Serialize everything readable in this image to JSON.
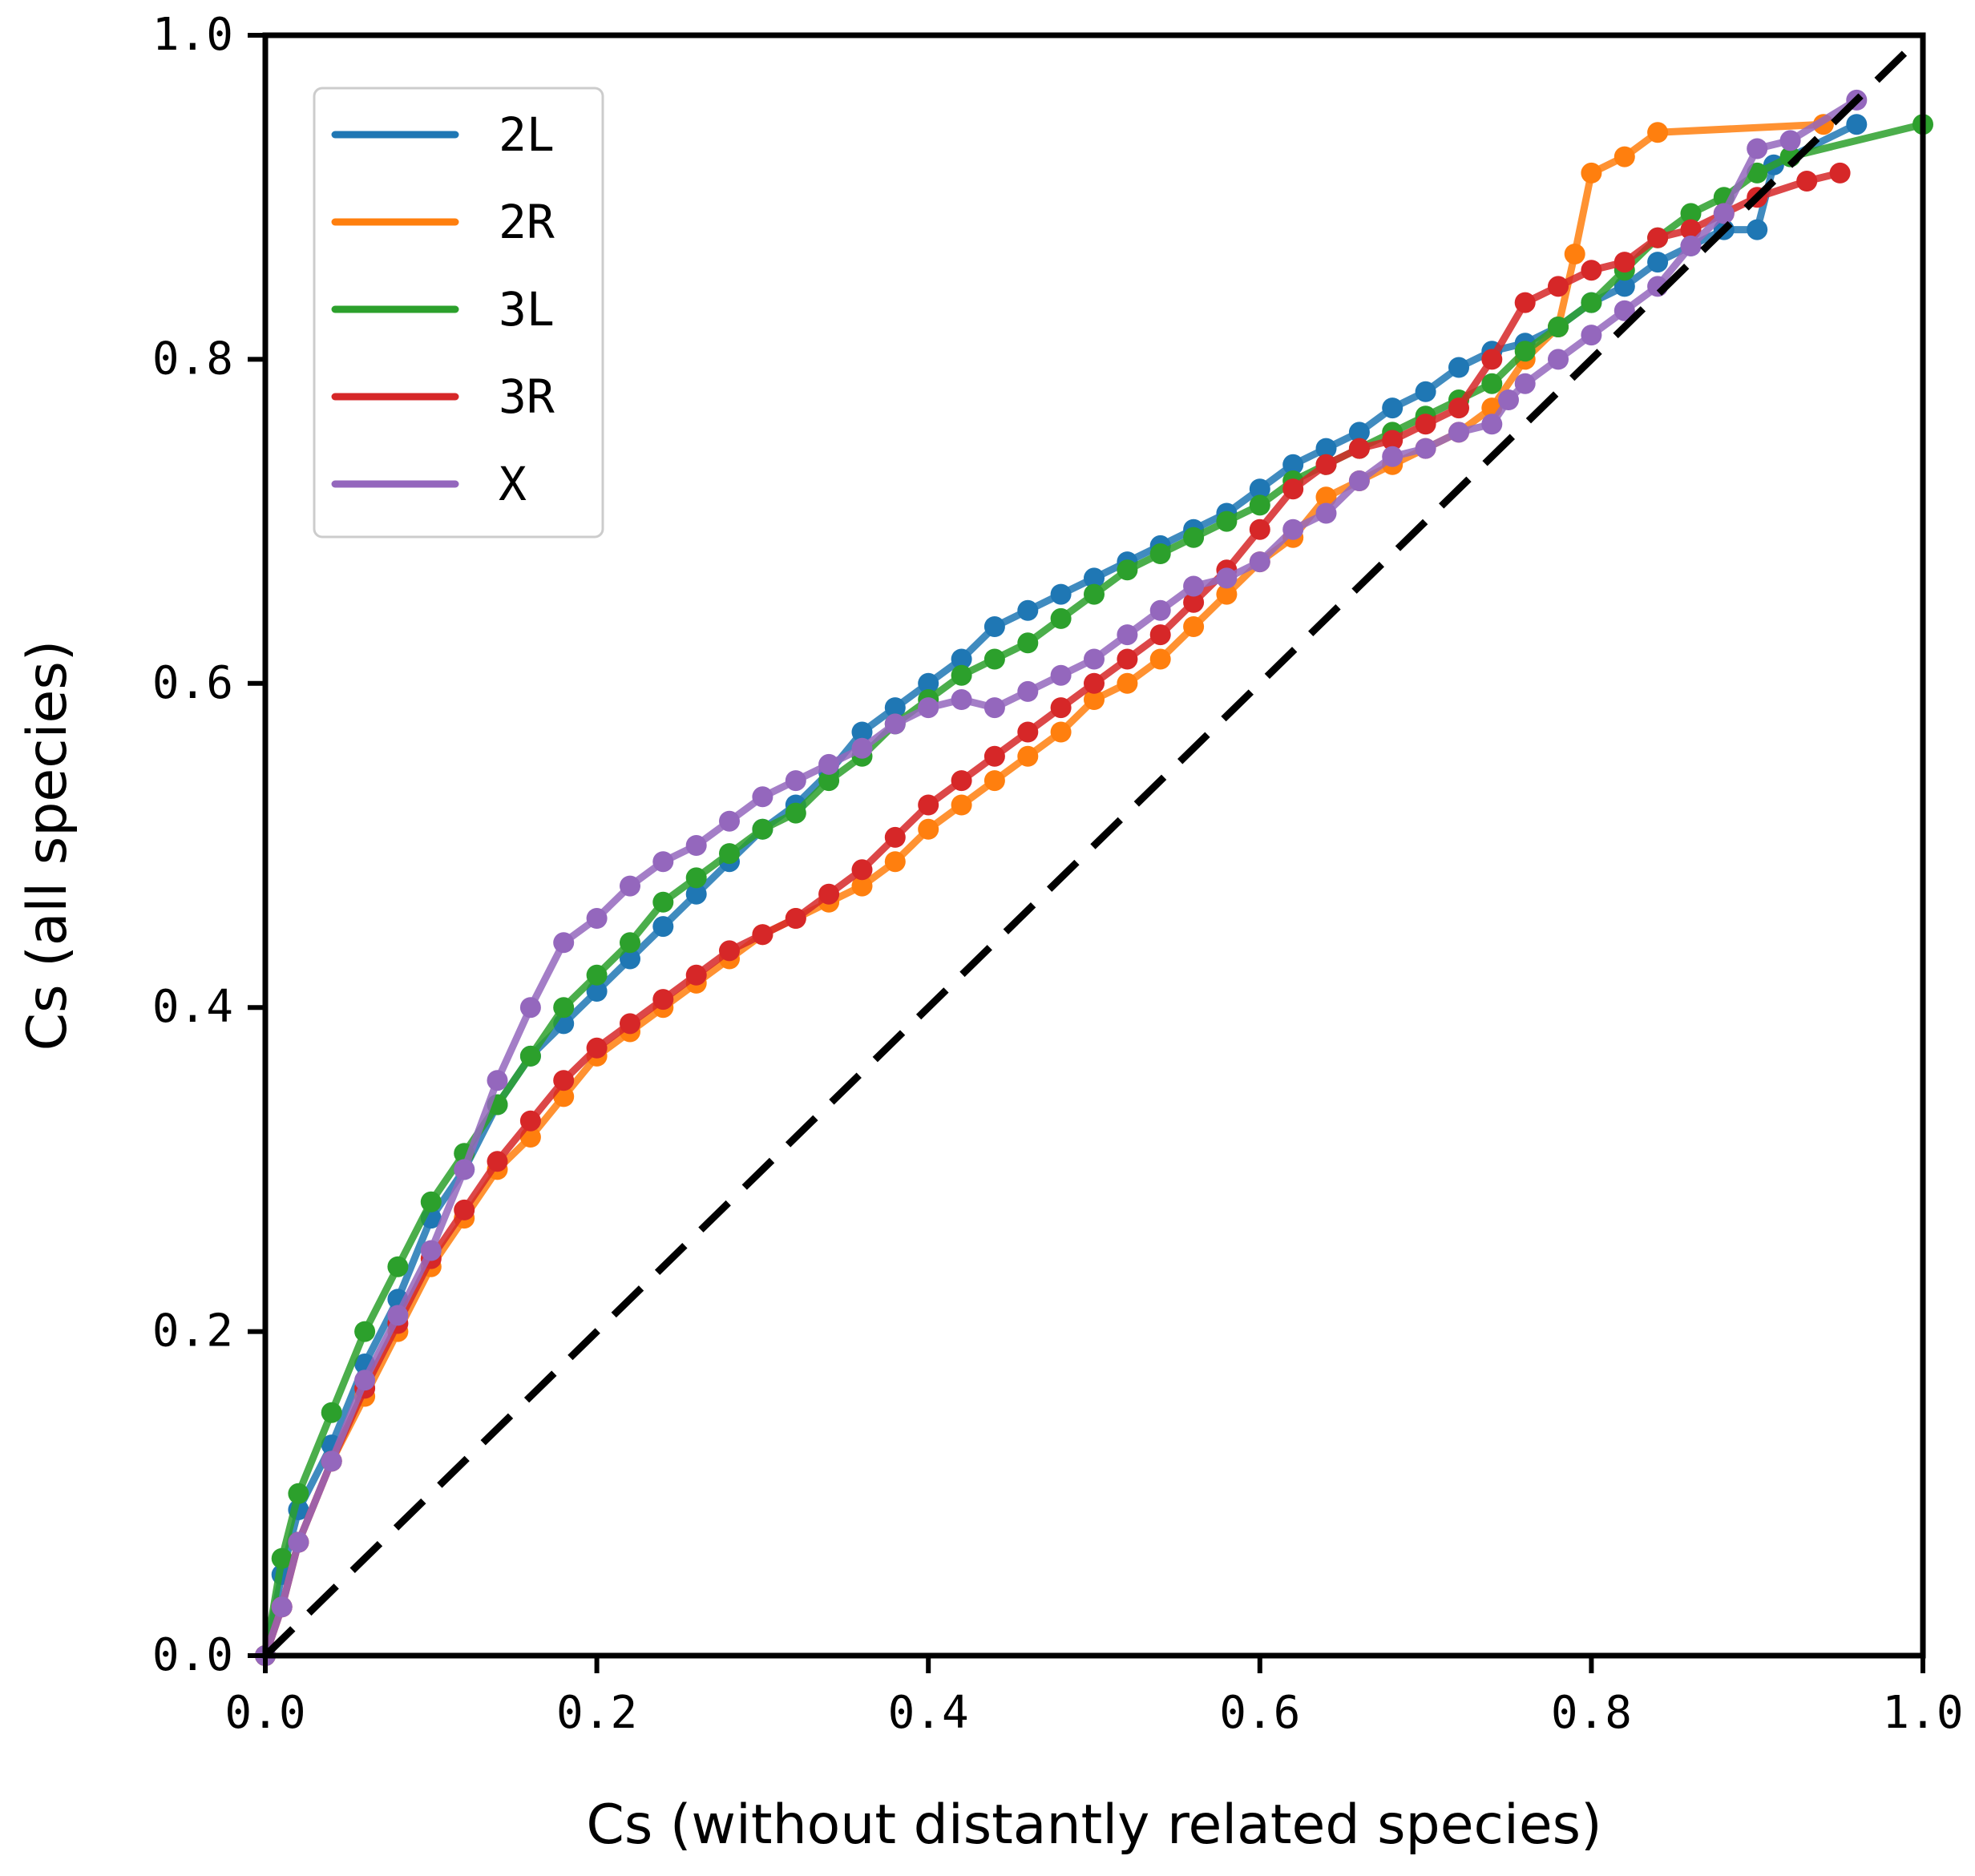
{
  "chart_data": {
    "type": "line",
    "title": "",
    "xlabel": "Cs (without distantly related species)",
    "ylabel": "Cs (all species)",
    "xlim": [
      0.0,
      1.0
    ],
    "ylim": [
      0.0,
      1.0
    ],
    "x_ticks": [
      "0.0",
      "0.2",
      "0.4",
      "0.6",
      "0.8",
      "1.0"
    ],
    "y_ticks": [
      "0.0",
      "0.2",
      "0.4",
      "0.6",
      "0.8",
      "1.0"
    ],
    "legend_position": "top-left",
    "reference_line": {
      "style": "dashed",
      "color": "#000000",
      "from": [
        0,
        0
      ],
      "to": [
        1,
        1
      ]
    },
    "series": [
      {
        "name": "2L",
        "color": "#1f77b4",
        "points": [
          [
            0.0,
            0.0
          ],
          [
            0.01,
            0.05
          ],
          [
            0.02,
            0.09
          ],
          [
            0.04,
            0.13
          ],
          [
            0.06,
            0.18
          ],
          [
            0.08,
            0.22
          ],
          [
            0.1,
            0.27
          ],
          [
            0.12,
            0.3
          ],
          [
            0.14,
            0.34
          ],
          [
            0.16,
            0.37
          ],
          [
            0.18,
            0.39
          ],
          [
            0.2,
            0.41
          ],
          [
            0.22,
            0.43
          ],
          [
            0.24,
            0.45
          ],
          [
            0.26,
            0.47
          ],
          [
            0.28,
            0.49
          ],
          [
            0.3,
            0.51
          ],
          [
            0.32,
            0.525
          ],
          [
            0.34,
            0.545
          ],
          [
            0.36,
            0.57
          ],
          [
            0.38,
            0.585
          ],
          [
            0.4,
            0.6
          ],
          [
            0.42,
            0.615
          ],
          [
            0.44,
            0.635
          ],
          [
            0.46,
            0.645
          ],
          [
            0.48,
            0.655
          ],
          [
            0.5,
            0.665
          ],
          [
            0.52,
            0.675
          ],
          [
            0.54,
            0.685
          ],
          [
            0.56,
            0.695
          ],
          [
            0.58,
            0.705
          ],
          [
            0.6,
            0.72
          ],
          [
            0.62,
            0.735
          ],
          [
            0.64,
            0.745
          ],
          [
            0.66,
            0.755
          ],
          [
            0.68,
            0.77
          ],
          [
            0.7,
            0.78
          ],
          [
            0.72,
            0.795
          ],
          [
            0.74,
            0.805
          ],
          [
            0.76,
            0.81
          ],
          [
            0.78,
            0.82
          ],
          [
            0.8,
            0.835
          ],
          [
            0.82,
            0.845
          ],
          [
            0.84,
            0.86
          ],
          [
            0.86,
            0.87
          ],
          [
            0.88,
            0.88
          ],
          [
            0.9,
            0.88
          ],
          [
            0.91,
            0.92
          ],
          [
            0.96,
            0.945
          ]
        ]
      },
      {
        "name": "2R",
        "color": "#ff7f0e",
        "points": [
          [
            0.0,
            0.0
          ],
          [
            0.01,
            0.03
          ],
          [
            0.02,
            0.07
          ],
          [
            0.04,
            0.12
          ],
          [
            0.06,
            0.16
          ],
          [
            0.08,
            0.2
          ],
          [
            0.1,
            0.24
          ],
          [
            0.12,
            0.27
          ],
          [
            0.14,
            0.3
          ],
          [
            0.16,
            0.32
          ],
          [
            0.18,
            0.345
          ],
          [
            0.2,
            0.37
          ],
          [
            0.22,
            0.385
          ],
          [
            0.24,
            0.4
          ],
          [
            0.26,
            0.415
          ],
          [
            0.28,
            0.43
          ],
          [
            0.3,
            0.445
          ],
          [
            0.32,
            0.455
          ],
          [
            0.34,
            0.465
          ],
          [
            0.36,
            0.475
          ],
          [
            0.38,
            0.49
          ],
          [
            0.4,
            0.51
          ],
          [
            0.42,
            0.525
          ],
          [
            0.44,
            0.54
          ],
          [
            0.46,
            0.555
          ],
          [
            0.48,
            0.57
          ],
          [
            0.5,
            0.59
          ],
          [
            0.52,
            0.6
          ],
          [
            0.54,
            0.615
          ],
          [
            0.56,
            0.635
          ],
          [
            0.58,
            0.655
          ],
          [
            0.6,
            0.675
          ],
          [
            0.62,
            0.69
          ],
          [
            0.64,
            0.715
          ],
          [
            0.66,
            0.725
          ],
          [
            0.68,
            0.735
          ],
          [
            0.7,
            0.745
          ],
          [
            0.72,
            0.755
          ],
          [
            0.74,
            0.77
          ],
          [
            0.76,
            0.8
          ],
          [
            0.78,
            0.82
          ],
          [
            0.79,
            0.865
          ],
          [
            0.8,
            0.915
          ],
          [
            0.82,
            0.925
          ],
          [
            0.84,
            0.94
          ],
          [
            0.94,
            0.945
          ]
        ]
      },
      {
        "name": "3L",
        "color": "#2ca02c",
        "points": [
          [
            0.0,
            0.0
          ],
          [
            0.01,
            0.06
          ],
          [
            0.02,
            0.1
          ],
          [
            0.04,
            0.15
          ],
          [
            0.06,
            0.2
          ],
          [
            0.08,
            0.24
          ],
          [
            0.1,
            0.28
          ],
          [
            0.12,
            0.31
          ],
          [
            0.14,
            0.34
          ],
          [
            0.16,
            0.37
          ],
          [
            0.18,
            0.4
          ],
          [
            0.2,
            0.42
          ],
          [
            0.22,
            0.44
          ],
          [
            0.24,
            0.465
          ],
          [
            0.26,
            0.48
          ],
          [
            0.28,
            0.495
          ],
          [
            0.3,
            0.51
          ],
          [
            0.32,
            0.52
          ],
          [
            0.34,
            0.54
          ],
          [
            0.36,
            0.555
          ],
          [
            0.38,
            0.575
          ],
          [
            0.4,
            0.59
          ],
          [
            0.42,
            0.605
          ],
          [
            0.44,
            0.615
          ],
          [
            0.46,
            0.625
          ],
          [
            0.48,
            0.64
          ],
          [
            0.5,
            0.655
          ],
          [
            0.52,
            0.67
          ],
          [
            0.54,
            0.68
          ],
          [
            0.56,
            0.69
          ],
          [
            0.58,
            0.7
          ],
          [
            0.6,
            0.71
          ],
          [
            0.62,
            0.725
          ],
          [
            0.64,
            0.735
          ],
          [
            0.66,
            0.745
          ],
          [
            0.68,
            0.755
          ],
          [
            0.7,
            0.765
          ],
          [
            0.72,
            0.775
          ],
          [
            0.74,
            0.785
          ],
          [
            0.76,
            0.805
          ],
          [
            0.78,
            0.82
          ],
          [
            0.8,
            0.835
          ],
          [
            0.82,
            0.855
          ],
          [
            0.84,
            0.875
          ],
          [
            0.86,
            0.89
          ],
          [
            0.88,
            0.9
          ],
          [
            0.9,
            0.915
          ],
          [
            0.92,
            0.925
          ],
          [
            1.0,
            0.945
          ]
        ]
      },
      {
        "name": "3R",
        "color": "#d62728",
        "points": [
          [
            0.0,
            0.0
          ],
          [
            0.01,
            0.03
          ],
          [
            0.02,
            0.07
          ],
          [
            0.04,
            0.12
          ],
          [
            0.06,
            0.165
          ],
          [
            0.08,
            0.205
          ],
          [
            0.1,
            0.245
          ],
          [
            0.12,
            0.275
          ],
          [
            0.14,
            0.305
          ],
          [
            0.16,
            0.33
          ],
          [
            0.18,
            0.355
          ],
          [
            0.2,
            0.375
          ],
          [
            0.22,
            0.39
          ],
          [
            0.24,
            0.405
          ],
          [
            0.26,
            0.42
          ],
          [
            0.28,
            0.435
          ],
          [
            0.3,
            0.445
          ],
          [
            0.32,
            0.455
          ],
          [
            0.34,
            0.47
          ],
          [
            0.36,
            0.485
          ],
          [
            0.38,
            0.505
          ],
          [
            0.4,
            0.525
          ],
          [
            0.42,
            0.54
          ],
          [
            0.44,
            0.555
          ],
          [
            0.46,
            0.57
          ],
          [
            0.48,
            0.585
          ],
          [
            0.5,
            0.6
          ],
          [
            0.52,
            0.615
          ],
          [
            0.54,
            0.63
          ],
          [
            0.56,
            0.65
          ],
          [
            0.58,
            0.67
          ],
          [
            0.6,
            0.695
          ],
          [
            0.62,
            0.72
          ],
          [
            0.64,
            0.735
          ],
          [
            0.66,
            0.745
          ],
          [
            0.68,
            0.75
          ],
          [
            0.7,
            0.76
          ],
          [
            0.72,
            0.77
          ],
          [
            0.74,
            0.8
          ],
          [
            0.76,
            0.835
          ],
          [
            0.78,
            0.845
          ],
          [
            0.8,
            0.855
          ],
          [
            0.82,
            0.86
          ],
          [
            0.84,
            0.875
          ],
          [
            0.86,
            0.88
          ],
          [
            0.88,
            0.89
          ],
          [
            0.9,
            0.9
          ],
          [
            0.93,
            0.91
          ],
          [
            0.95,
            0.915
          ]
        ]
      },
      {
        "name": "X",
        "color": "#9467bd",
        "points": [
          [
            0.0,
            0.0
          ],
          [
            0.01,
            0.03
          ],
          [
            0.02,
            0.07
          ],
          [
            0.04,
            0.12
          ],
          [
            0.06,
            0.17
          ],
          [
            0.08,
            0.21
          ],
          [
            0.1,
            0.25
          ],
          [
            0.12,
            0.3
          ],
          [
            0.14,
            0.355
          ],
          [
            0.16,
            0.4
          ],
          [
            0.18,
            0.44
          ],
          [
            0.2,
            0.455
          ],
          [
            0.22,
            0.475
          ],
          [
            0.24,
            0.49
          ],
          [
            0.26,
            0.5
          ],
          [
            0.28,
            0.515
          ],
          [
            0.3,
            0.53
          ],
          [
            0.32,
            0.54
          ],
          [
            0.34,
            0.55
          ],
          [
            0.36,
            0.56
          ],
          [
            0.38,
            0.575
          ],
          [
            0.4,
            0.585
          ],
          [
            0.42,
            0.59
          ],
          [
            0.44,
            0.585
          ],
          [
            0.46,
            0.595
          ],
          [
            0.48,
            0.605
          ],
          [
            0.5,
            0.615
          ],
          [
            0.52,
            0.63
          ],
          [
            0.54,
            0.645
          ],
          [
            0.56,
            0.66
          ],
          [
            0.58,
            0.665
          ],
          [
            0.6,
            0.675
          ],
          [
            0.62,
            0.695
          ],
          [
            0.64,
            0.705
          ],
          [
            0.66,
            0.725
          ],
          [
            0.68,
            0.74
          ],
          [
            0.7,
            0.745
          ],
          [
            0.72,
            0.755
          ],
          [
            0.74,
            0.76
          ],
          [
            0.75,
            0.775
          ],
          [
            0.76,
            0.785
          ],
          [
            0.78,
            0.8
          ],
          [
            0.8,
            0.815
          ],
          [
            0.82,
            0.83
          ],
          [
            0.84,
            0.845
          ],
          [
            0.86,
            0.87
          ],
          [
            0.88,
            0.89
          ],
          [
            0.9,
            0.93
          ],
          [
            0.92,
            0.935
          ],
          [
            0.96,
            0.96
          ]
        ]
      }
    ]
  }
}
